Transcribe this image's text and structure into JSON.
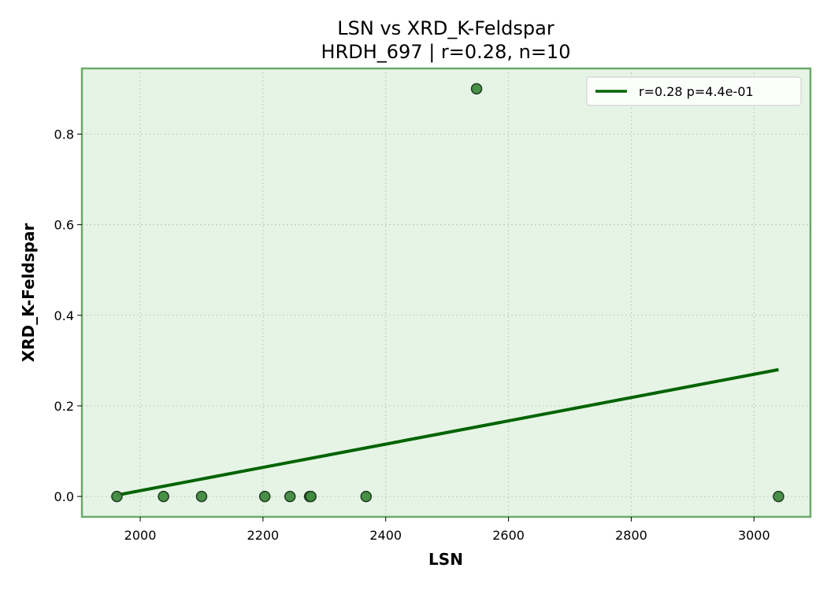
{
  "chart_data": {
    "type": "scatter",
    "title": "LSN vs XRD_K-Feldspar",
    "subtitle": "HRDH_697 | r=0.28, n=10",
    "xlabel": "LSN",
    "ylabel": "XRD_K-Feldspar",
    "xlim": [
      1905,
      3092
    ],
    "ylim": [
      -0.045,
      0.945
    ],
    "xticks": [
      2000,
      2200,
      2400,
      2600,
      2800,
      3000
    ],
    "yticks": [
      0.0,
      0.2,
      0.4,
      0.6,
      0.8
    ],
    "xtick_labels": [
      "2000",
      "2200",
      "2400",
      "2600",
      "2800",
      "3000"
    ],
    "ytick_labels": [
      "0.0",
      "0.2",
      "0.4",
      "0.6",
      "0.8"
    ],
    "grid": true,
    "legend_position": "top-right",
    "points": [
      {
        "x": 1962,
        "y": 0.0
      },
      {
        "x": 2038,
        "y": 0.0
      },
      {
        "x": 2100,
        "y": 0.0
      },
      {
        "x": 2203,
        "y": 0.0
      },
      {
        "x": 2244,
        "y": 0.0
      },
      {
        "x": 2276,
        "y": 0.0
      },
      {
        "x": 2278,
        "y": 0.0
      },
      {
        "x": 2368,
        "y": 0.0
      },
      {
        "x": 2548,
        "y": 0.9
      },
      {
        "x": 3040,
        "y": 0.0
      }
    ],
    "fit_line": {
      "label": "r=0.28  p=4.4e-01",
      "x": [
        1962,
        3040
      ],
      "y": [
        0.003,
        0.28
      ]
    },
    "colors": {
      "plot_background": "#e6f4e6",
      "frame": "#6aaa6a",
      "marker_fill": "#3f8a3f",
      "marker_edge": "#1e3a1e",
      "fit_line": "#006400",
      "grid": "#b8c8b8"
    }
  }
}
